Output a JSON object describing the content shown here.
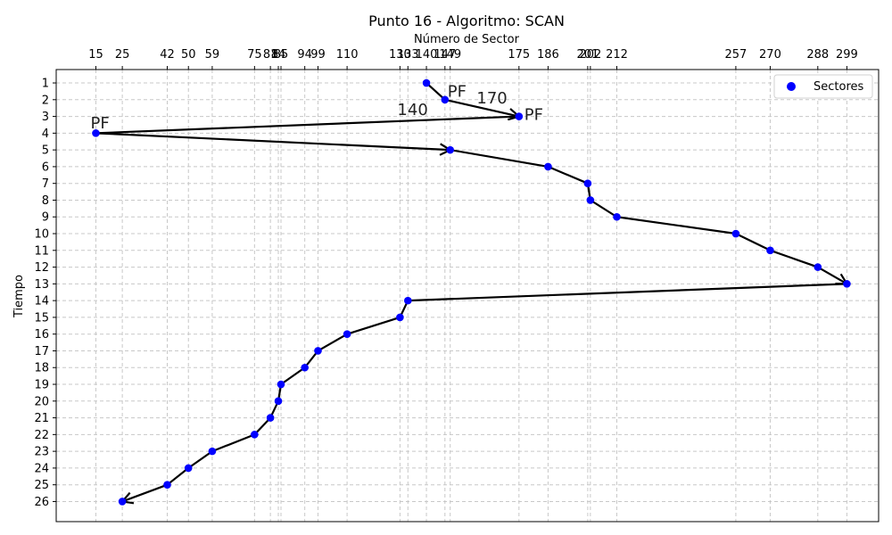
{
  "chart_data": {
    "type": "scatter",
    "title": "Punto 16 - Algoritmo: SCAN",
    "xlabel": "Número de Sector",
    "ylabel": "Tiempo",
    "x_axis_position": "top",
    "y_axis_inverted": true,
    "xlim": [
      0,
      311
    ],
    "ylim": [
      27.2,
      0.2
    ],
    "x_ticks": [
      15,
      25,
      42,
      50,
      59,
      75,
      81,
      84,
      85,
      94,
      99,
      110,
      130,
      133,
      140,
      147,
      149,
      175,
      186,
      201,
      202,
      212,
      257,
      270,
      288,
      299
    ],
    "x_tick_labels": [
      "15",
      "25",
      "42",
      "50",
      "59",
      "75",
      "81",
      "84",
      "85",
      "94",
      "99",
      "110",
      "130",
      "133",
      "140",
      "147",
      "149",
      "175",
      "186",
      "201",
      "202",
      "212",
      "257",
      "270",
      "288",
      "299"
    ],
    "y_ticks": [
      1,
      2,
      3,
      4,
      5,
      6,
      7,
      8,
      9,
      10,
      11,
      12,
      13,
      14,
      15,
      16,
      17,
      18,
      19,
      20,
      21,
      22,
      23,
      24,
      25,
      26
    ],
    "y_tick_labels": [
      "1",
      "2",
      "3",
      "4",
      "5",
      "6",
      "7",
      "8",
      "9",
      "10",
      "11",
      "12",
      "13",
      "14",
      "15",
      "16",
      "17",
      "18",
      "19",
      "20",
      "21",
      "22",
      "23",
      "24",
      "25",
      "26"
    ],
    "grid": true,
    "legend_position": "top-right",
    "series": [
      {
        "name": "Sectores",
        "color": "#0000ff",
        "x": [
          140,
          147,
          175,
          15,
          149,
          186,
          201,
          202,
          212,
          257,
          270,
          288,
          299,
          133,
          130,
          110,
          99,
          94,
          85,
          84,
          81,
          75,
          59,
          50,
          42,
          25
        ],
        "y": [
          1,
          2,
          3,
          4,
          5,
          6,
          7,
          8,
          9,
          10,
          11,
          12,
          13,
          14,
          15,
          16,
          17,
          18,
          19,
          20,
          21,
          22,
          23,
          24,
          25,
          26
        ]
      }
    ],
    "arrow_heads_at_points": [
      3,
      5,
      13,
      26
    ],
    "annotations": [
      {
        "text": "PF",
        "x": 148,
        "y": 1.5
      },
      {
        "text": "170",
        "x": 159,
        "y": 1.9
      },
      {
        "text": "140",
        "x": 129,
        "y": 2.6
      },
      {
        "text": "PF",
        "x": 177,
        "y": 2.9
      },
      {
        "text": "PF",
        "x": 13,
        "y": 3.4
      }
    ]
  }
}
